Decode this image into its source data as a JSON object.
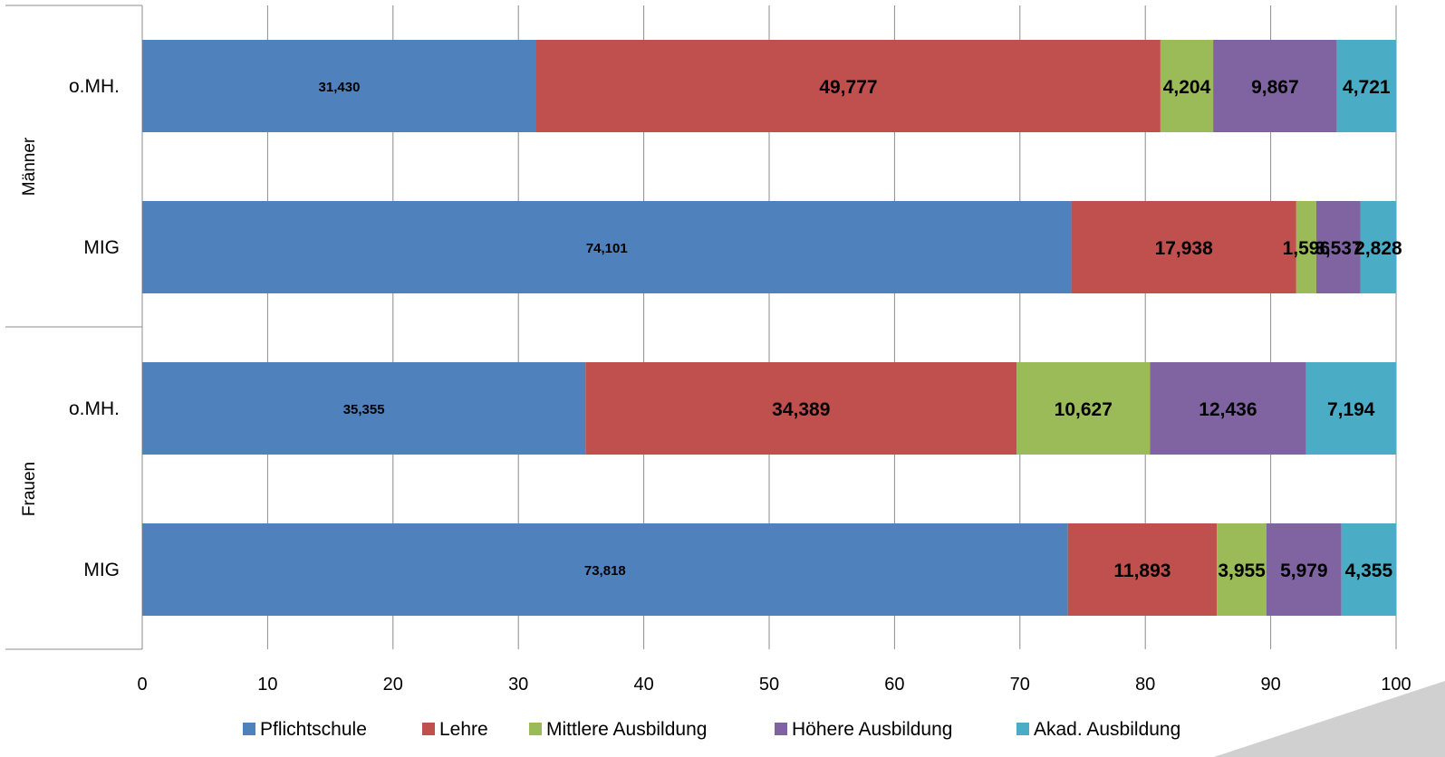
{
  "chart_data": {
    "type": "bar",
    "orientation": "horizontal",
    "stacked": "percent",
    "groups": [
      {
        "label": "Männer",
        "categories": [
          "o.MH.",
          "MIG"
        ]
      },
      {
        "label": "Frauen",
        "categories": [
          "o.MH.",
          "MIG"
        ]
      }
    ],
    "rows": [
      {
        "group": "Männer",
        "category": "o.MH.",
        "values": [
          31.43,
          49.777,
          4.204,
          9.867,
          4.721
        ],
        "labels": [
          "31,430",
          "49,777",
          "4,204",
          "9,867",
          "4,721"
        ]
      },
      {
        "group": "Männer",
        "category": "MIG",
        "values": [
          74.101,
          17.938,
          1.596,
          3.537,
          2.828
        ],
        "labels": [
          "74,101",
          "17,938",
          "1,596",
          "3,537",
          "2,828"
        ]
      },
      {
        "group": "Frauen",
        "category": "o.MH.",
        "values": [
          35.355,
          34.389,
          10.627,
          12.436,
          7.194
        ],
        "labels": [
          "35,355",
          "34,389",
          "10,627",
          "12,436",
          "7,194"
        ]
      },
      {
        "group": "Frauen",
        "category": "MIG",
        "values": [
          73.818,
          11.893,
          3.955,
          5.979,
          4.355
        ],
        "labels": [
          "73,818",
          "11,893",
          "3,955",
          "5,979",
          "4,355"
        ]
      }
    ],
    "series": [
      {
        "name": "Pflichtschule",
        "color": "#4F81BD"
      },
      {
        "name": "Lehre",
        "color": "#C0504D"
      },
      {
        "name": "Mittlere Ausbildung",
        "color": "#9BBB59"
      },
      {
        "name": "Höhere Ausbildung",
        "color": "#8064A2"
      },
      {
        "name": "Akad. Ausbildung",
        "color": "#4BACC6"
      }
    ],
    "xlim": [
      0,
      100
    ],
    "xticks": [
      0,
      10,
      20,
      30,
      40,
      50,
      60,
      70,
      80,
      90,
      100
    ],
    "grid": true,
    "legend_position": "bottom",
    "title": "",
    "xlabel": "",
    "ylabel": ""
  }
}
